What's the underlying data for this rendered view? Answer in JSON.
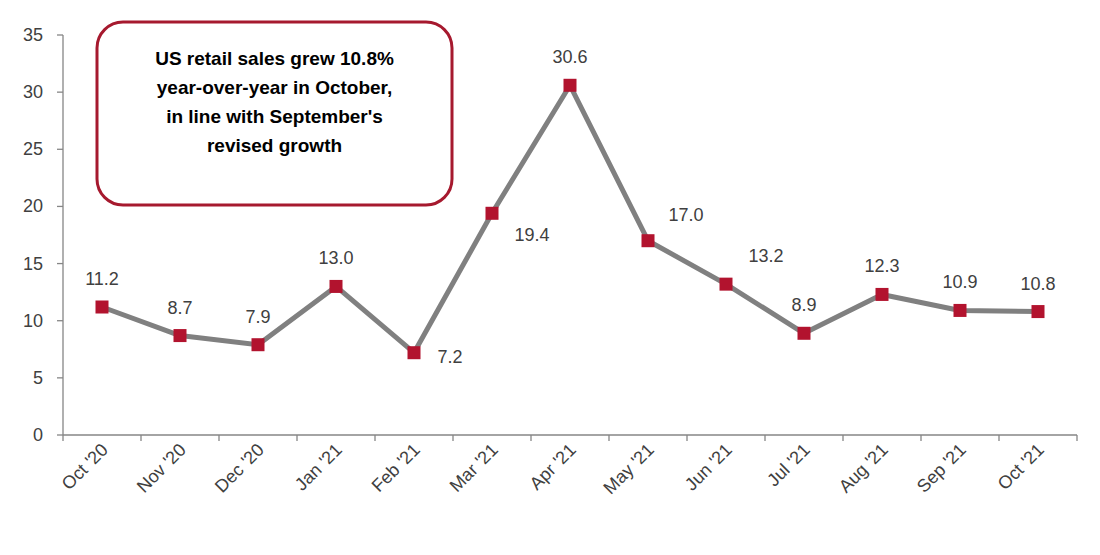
{
  "chart_data": {
    "type": "line",
    "annotation": [
      "US retail sales grew 10.8%",
      "year-over-year in October,",
      "in line with September's",
      "revised growth"
    ],
    "categories": [
      "Oct '20",
      "Nov '20",
      "Dec '20",
      "Jan '21",
      "Feb '21",
      "Mar '21",
      "Apr '21",
      "May '21",
      "Jun '21",
      "Jul '21",
      "Aug '21",
      "Sep '21",
      "Oct '21"
    ],
    "values": [
      11.2,
      8.7,
      7.9,
      13.0,
      7.2,
      19.4,
      30.6,
      17.0,
      13.2,
      8.9,
      12.3,
      10.9,
      10.8
    ],
    "value_labels": [
      "11.2",
      "8.7",
      "7.9",
      "13.0",
      "7.2",
      "19.4",
      "30.6",
      "17.0",
      "13.2",
      "8.9",
      "12.3",
      "10.9",
      "10.8"
    ],
    "color": "#808080",
    "colors": [
      "#b2132e",
      "#b2132e",
      "#b2132e",
      "#b2132e",
      "#b2132e",
      "#b2132e",
      "#b2132e",
      "#b2132e",
      "#b2132e",
      "#b2132e",
      "#b2132e",
      "#b2132e",
      "#b2132e"
    ],
    "marker": "square",
    "line_style": "solid",
    "data_labels": true,
    "grid": false,
    "ylim": [
      0,
      35
    ],
    "yticks": [
      0,
      5,
      10,
      15,
      20,
      25,
      30,
      35
    ]
  }
}
